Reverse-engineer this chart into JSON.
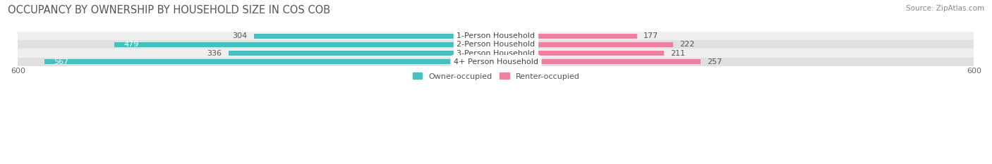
{
  "title": "OCCUPANCY BY OWNERSHIP BY HOUSEHOLD SIZE IN COS COB",
  "source": "Source: ZipAtlas.com",
  "categories": [
    "1-Person Household",
    "2-Person Household",
    "3-Person Household",
    "4+ Person Household"
  ],
  "owner_values": [
    304,
    479,
    336,
    567
  ],
  "renter_values": [
    177,
    222,
    211,
    257
  ],
  "owner_color": "#45bfbf",
  "renter_color": "#f080a0",
  "row_bg_colors": [
    "#efefef",
    "#e0e0e0",
    "#efefef",
    "#e0e0e0"
  ],
  "max_value": 600,
  "title_fontsize": 10.5,
  "source_fontsize": 7.5,
  "label_fontsize": 8,
  "tick_fontsize": 8,
  "legend_fontsize": 8,
  "background_color": "#ffffff",
  "bar_height": 0.62,
  "owner_label_threshold": 420
}
